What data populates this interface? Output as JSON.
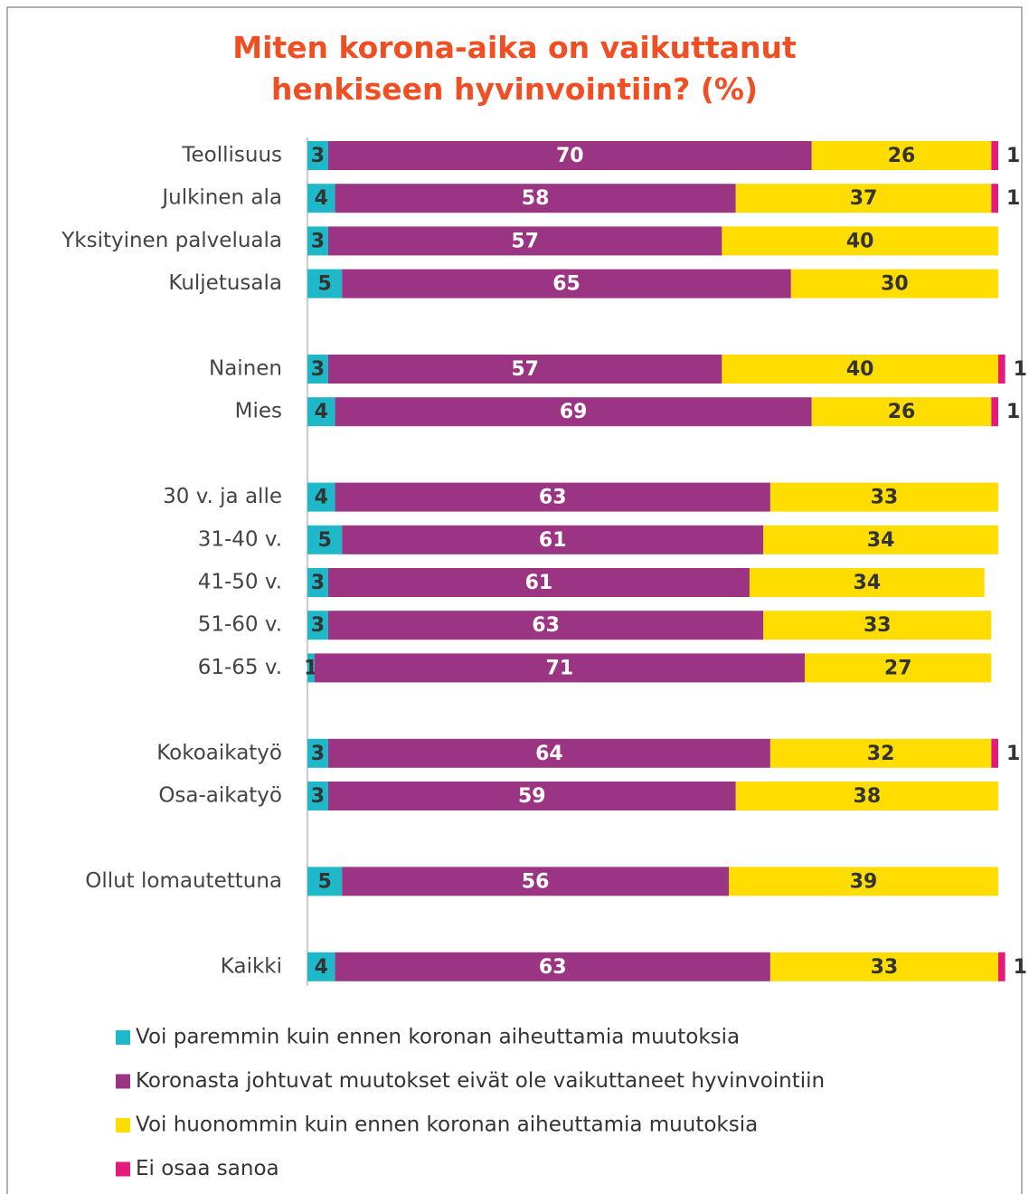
{
  "chart_data": {
    "type": "stacked_bar_horizontal",
    "title": "Miten korona-aika on vaikuttanut henkiseen hyvinvointiin? (%)",
    "categories": [
      "Teollisuus",
      "Julkinen ala",
      "Yksityinen palveluala",
      "Kuljetusala",
      null,
      "Nainen",
      "Mies",
      null,
      "30 v. ja alle",
      "31-40 v.",
      "41-50 v.",
      "51-60 v.",
      "61-65 v.",
      null,
      "Kokoaikatyö",
      "Osa-aikatyö",
      null,
      "Ollut lomautettuna",
      null,
      "Kaikki"
    ],
    "xlim": [
      0,
      100
    ],
    "series": [
      {
        "name": "Voi paremmin kuin ennen koronan aiheuttamia muutoksia",
        "color": "#1fb8c8",
        "values": [
          3,
          4,
          3,
          5,
          null,
          3,
          4,
          null,
          4,
          5,
          3,
          3,
          1,
          null,
          3,
          3,
          null,
          5,
          null,
          4
        ]
      },
      {
        "name": "Koronasta johtuvat muutokset eivät ole vaikuttaneet hyvinvointiin",
        "color": "#9b3583",
        "values": [
          70,
          58,
          57,
          65,
          null,
          57,
          69,
          null,
          63,
          61,
          61,
          63,
          71,
          null,
          64,
          59,
          null,
          56,
          null,
          63
        ]
      },
      {
        "name": "Voi huonommin kuin ennen koronan aiheuttamia muutoksia",
        "color": "#ffdd00",
        "values": [
          26,
          37,
          40,
          30,
          null,
          40,
          26,
          null,
          33,
          34,
          34,
          33,
          27,
          null,
          32,
          38,
          null,
          39,
          null,
          33
        ]
      },
      {
        "name": "Ei osaa sanoa",
        "color": "#e6197d",
        "values": [
          1,
          1,
          null,
          null,
          null,
          1,
          1,
          null,
          null,
          null,
          null,
          null,
          null,
          null,
          1,
          null,
          null,
          null,
          null,
          1
        ]
      }
    ]
  }
}
